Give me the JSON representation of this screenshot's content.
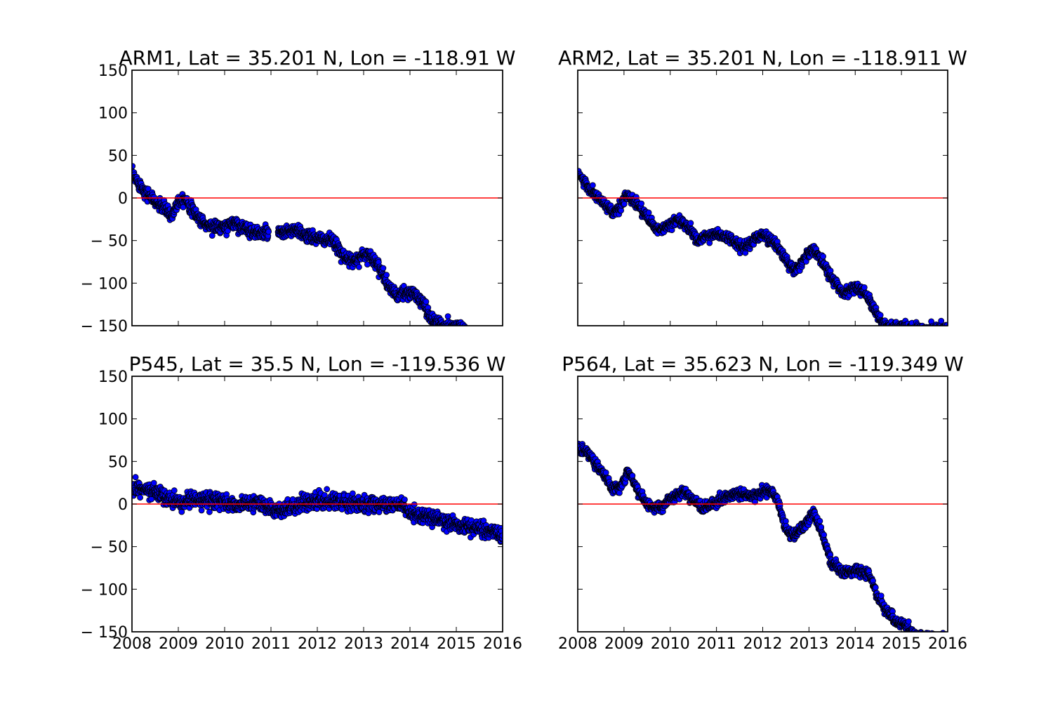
{
  "figure": {
    "background": "#ffffff",
    "marker_color": "#0000ff",
    "marker_edge": "#000000",
    "zero_line_color": "#ff0000"
  },
  "chart_data": [
    {
      "type": "scatter",
      "title": "ARM1, Lat = 35.201 N, Lon = -118.91 W",
      "xlim": [
        2008,
        2016
      ],
      "ylim": [
        -150,
        150
      ],
      "x_ticks": [
        "2008",
        "2009",
        "2010",
        "2011",
        "2012",
        "2013",
        "2014",
        "2015",
        "2016"
      ],
      "y_ticks": [
        "150",
        "100",
        "50",
        "0",
        "− 50",
        "− 100",
        "− 150"
      ],
      "show_x_tick_labels": false,
      "show_y_tick_labels": true,
      "reference_line_y": 0,
      "series": [
        {
          "x_start": 2008.0,
          "x_end": 2015.2,
          "trend": [
            [
              2008.0,
              28
            ],
            [
              2008.25,
              10
            ],
            [
              2008.5,
              -5
            ],
            [
              2008.7,
              -12
            ],
            [
              2008.85,
              -22
            ],
            [
              2009.0,
              -3
            ],
            [
              2009.15,
              0
            ],
            [
              2009.3,
              -15
            ],
            [
              2009.6,
              -32
            ],
            [
              2010.0,
              -35
            ],
            [
              2010.2,
              -28
            ],
            [
              2010.5,
              -38
            ],
            [
              2010.8,
              -42
            ],
            [
              2010.95,
              -40
            ],
            [
              2011.2,
              -42
            ],
            [
              2011.5,
              -38
            ],
            [
              2011.8,
              -45
            ],
            [
              2012.0,
              -48
            ],
            [
              2012.3,
              -50
            ],
            [
              2012.5,
              -62
            ],
            [
              2012.7,
              -75
            ],
            [
              2012.9,
              -70
            ],
            [
              2013.1,
              -65
            ],
            [
              2013.3,
              -78
            ],
            [
              2013.5,
              -100
            ],
            [
              2013.7,
              -115
            ],
            [
              2013.9,
              -112
            ],
            [
              2014.1,
              -112
            ],
            [
              2014.3,
              -125
            ],
            [
              2014.5,
              -145
            ],
            [
              2014.7,
              -150
            ],
            [
              2015.2,
              -152
            ]
          ],
          "gap": [
            2010.95,
            2011.15
          ],
          "spread": 6
        }
      ]
    },
    {
      "type": "scatter",
      "title": "ARM2, Lat = 35.201 N, Lon = -118.911 W",
      "xlim": [
        2008,
        2016
      ],
      "ylim": [
        -150,
        150
      ],
      "x_ticks": [
        "2008",
        "2009",
        "2010",
        "2011",
        "2012",
        "2013",
        "2014",
        "2015",
        "2016"
      ],
      "y_ticks": [],
      "show_x_tick_labels": false,
      "show_y_tick_labels": false,
      "reference_line_y": 0,
      "series": [
        {
          "x_start": 2008.0,
          "x_end": 2016.0,
          "trend": [
            [
              2008.0,
              30
            ],
            [
              2008.25,
              10
            ],
            [
              2008.5,
              -3
            ],
            [
              2008.75,
              -18
            ],
            [
              2008.9,
              -12
            ],
            [
              2009.05,
              3
            ],
            [
              2009.25,
              -5
            ],
            [
              2009.5,
              -22
            ],
            [
              2009.7,
              -38
            ],
            [
              2009.9,
              -35
            ],
            [
              2010.15,
              -25
            ],
            [
              2010.4,
              -35
            ],
            [
              2010.6,
              -50
            ],
            [
              2010.8,
              -45
            ],
            [
              2011.0,
              -42
            ],
            [
              2011.3,
              -48
            ],
            [
              2011.55,
              -58
            ],
            [
              2011.75,
              -52
            ],
            [
              2012.0,
              -42
            ],
            [
              2012.3,
              -55
            ],
            [
              2012.5,
              -72
            ],
            [
              2012.7,
              -88
            ],
            [
              2012.9,
              -70
            ],
            [
              2013.1,
              -60
            ],
            [
              2013.3,
              -75
            ],
            [
              2013.5,
              -95
            ],
            [
              2013.75,
              -112
            ],
            [
              2014.0,
              -105
            ],
            [
              2014.2,
              -110
            ],
            [
              2014.4,
              -130
            ],
            [
              2014.6,
              -148
            ],
            [
              2014.8,
              -152
            ],
            [
              2016.0,
              -153
            ]
          ],
          "gap": null,
          "spread": 5
        }
      ]
    },
    {
      "type": "scatter",
      "title": "P545, Lat = 35.5 N, Lon = -119.536 W",
      "xlim": [
        2008,
        2016
      ],
      "ylim": [
        -150,
        150
      ],
      "x_ticks": [
        "2008",
        "2009",
        "2010",
        "2011",
        "2012",
        "2013",
        "2014",
        "2015",
        "2016"
      ],
      "y_ticks": [
        "150",
        "100",
        "50",
        "0",
        "− 50",
        "− 100",
        "− 150"
      ],
      "show_x_tick_labels": true,
      "show_y_tick_labels": true,
      "reference_line_y": 0,
      "series": [
        {
          "x_start": 2008.0,
          "x_end": 2016.0,
          "trend": [
            [
              2008.0,
              18
            ],
            [
              2008.5,
              15
            ],
            [
              2008.8,
              5
            ],
            [
              2009.0,
              2
            ],
            [
              2009.5,
              5
            ],
            [
              2010.0,
              2
            ],
            [
              2010.3,
              -2
            ],
            [
              2010.7,
              3
            ],
            [
              2011.0,
              -5
            ],
            [
              2011.2,
              -10
            ],
            [
              2011.5,
              -2
            ],
            [
              2011.8,
              2
            ],
            [
              2012.5,
              3
            ],
            [
              2013.0,
              0
            ],
            [
              2013.5,
              -2
            ],
            [
              2013.8,
              0
            ],
            [
              2014.0,
              -12
            ],
            [
              2014.5,
              -15
            ],
            [
              2015.0,
              -25
            ],
            [
              2015.5,
              -28
            ],
            [
              2016.0,
              -38
            ]
          ],
          "gap": null,
          "spread": 7
        }
      ]
    },
    {
      "type": "scatter",
      "title": "P564, Lat = 35.623 N, Lon = -119.349 W",
      "xlim": [
        2008,
        2016
      ],
      "ylim": [
        -150,
        150
      ],
      "x_ticks": [
        "2008",
        "2009",
        "2010",
        "2011",
        "2012",
        "2013",
        "2014",
        "2015",
        "2016"
      ],
      "y_ticks": [],
      "show_x_tick_labels": true,
      "show_y_tick_labels": false,
      "reference_line_y": 0,
      "series": [
        {
          "x_start": 2008.0,
          "x_end": 2016.0,
          "trend": [
            [
              2008.0,
              68
            ],
            [
              2008.2,
              60
            ],
            [
              2008.5,
              40
            ],
            [
              2008.75,
              18
            ],
            [
              2008.9,
              20
            ],
            [
              2009.1,
              40
            ],
            [
              2009.3,
              15
            ],
            [
              2009.5,
              0
            ],
            [
              2009.7,
              -5
            ],
            [
              2009.9,
              0
            ],
            [
              2010.1,
              10
            ],
            [
              2010.3,
              15
            ],
            [
              2010.5,
              5
            ],
            [
              2010.7,
              -5
            ],
            [
              2010.9,
              0
            ],
            [
              2011.2,
              8
            ],
            [
              2011.5,
              12
            ],
            [
              2011.8,
              10
            ],
            [
              2012.0,
              15
            ],
            [
              2012.2,
              15
            ],
            [
              2012.35,
              0
            ],
            [
              2012.5,
              -30
            ],
            [
              2012.7,
              -38
            ],
            [
              2012.9,
              -25
            ],
            [
              2013.1,
              -10
            ],
            [
              2013.25,
              -30
            ],
            [
              2013.5,
              -70
            ],
            [
              2013.75,
              -80
            ],
            [
              2014.0,
              -78
            ],
            [
              2014.3,
              -82
            ],
            [
              2014.5,
              -110
            ],
            [
              2014.7,
              -128
            ],
            [
              2014.9,
              -138
            ],
            [
              2015.1,
              -142
            ],
            [
              2015.3,
              -155
            ],
            [
              2016.0,
              -160
            ]
          ],
          "gap": null,
          "spread": 5
        }
      ]
    }
  ]
}
